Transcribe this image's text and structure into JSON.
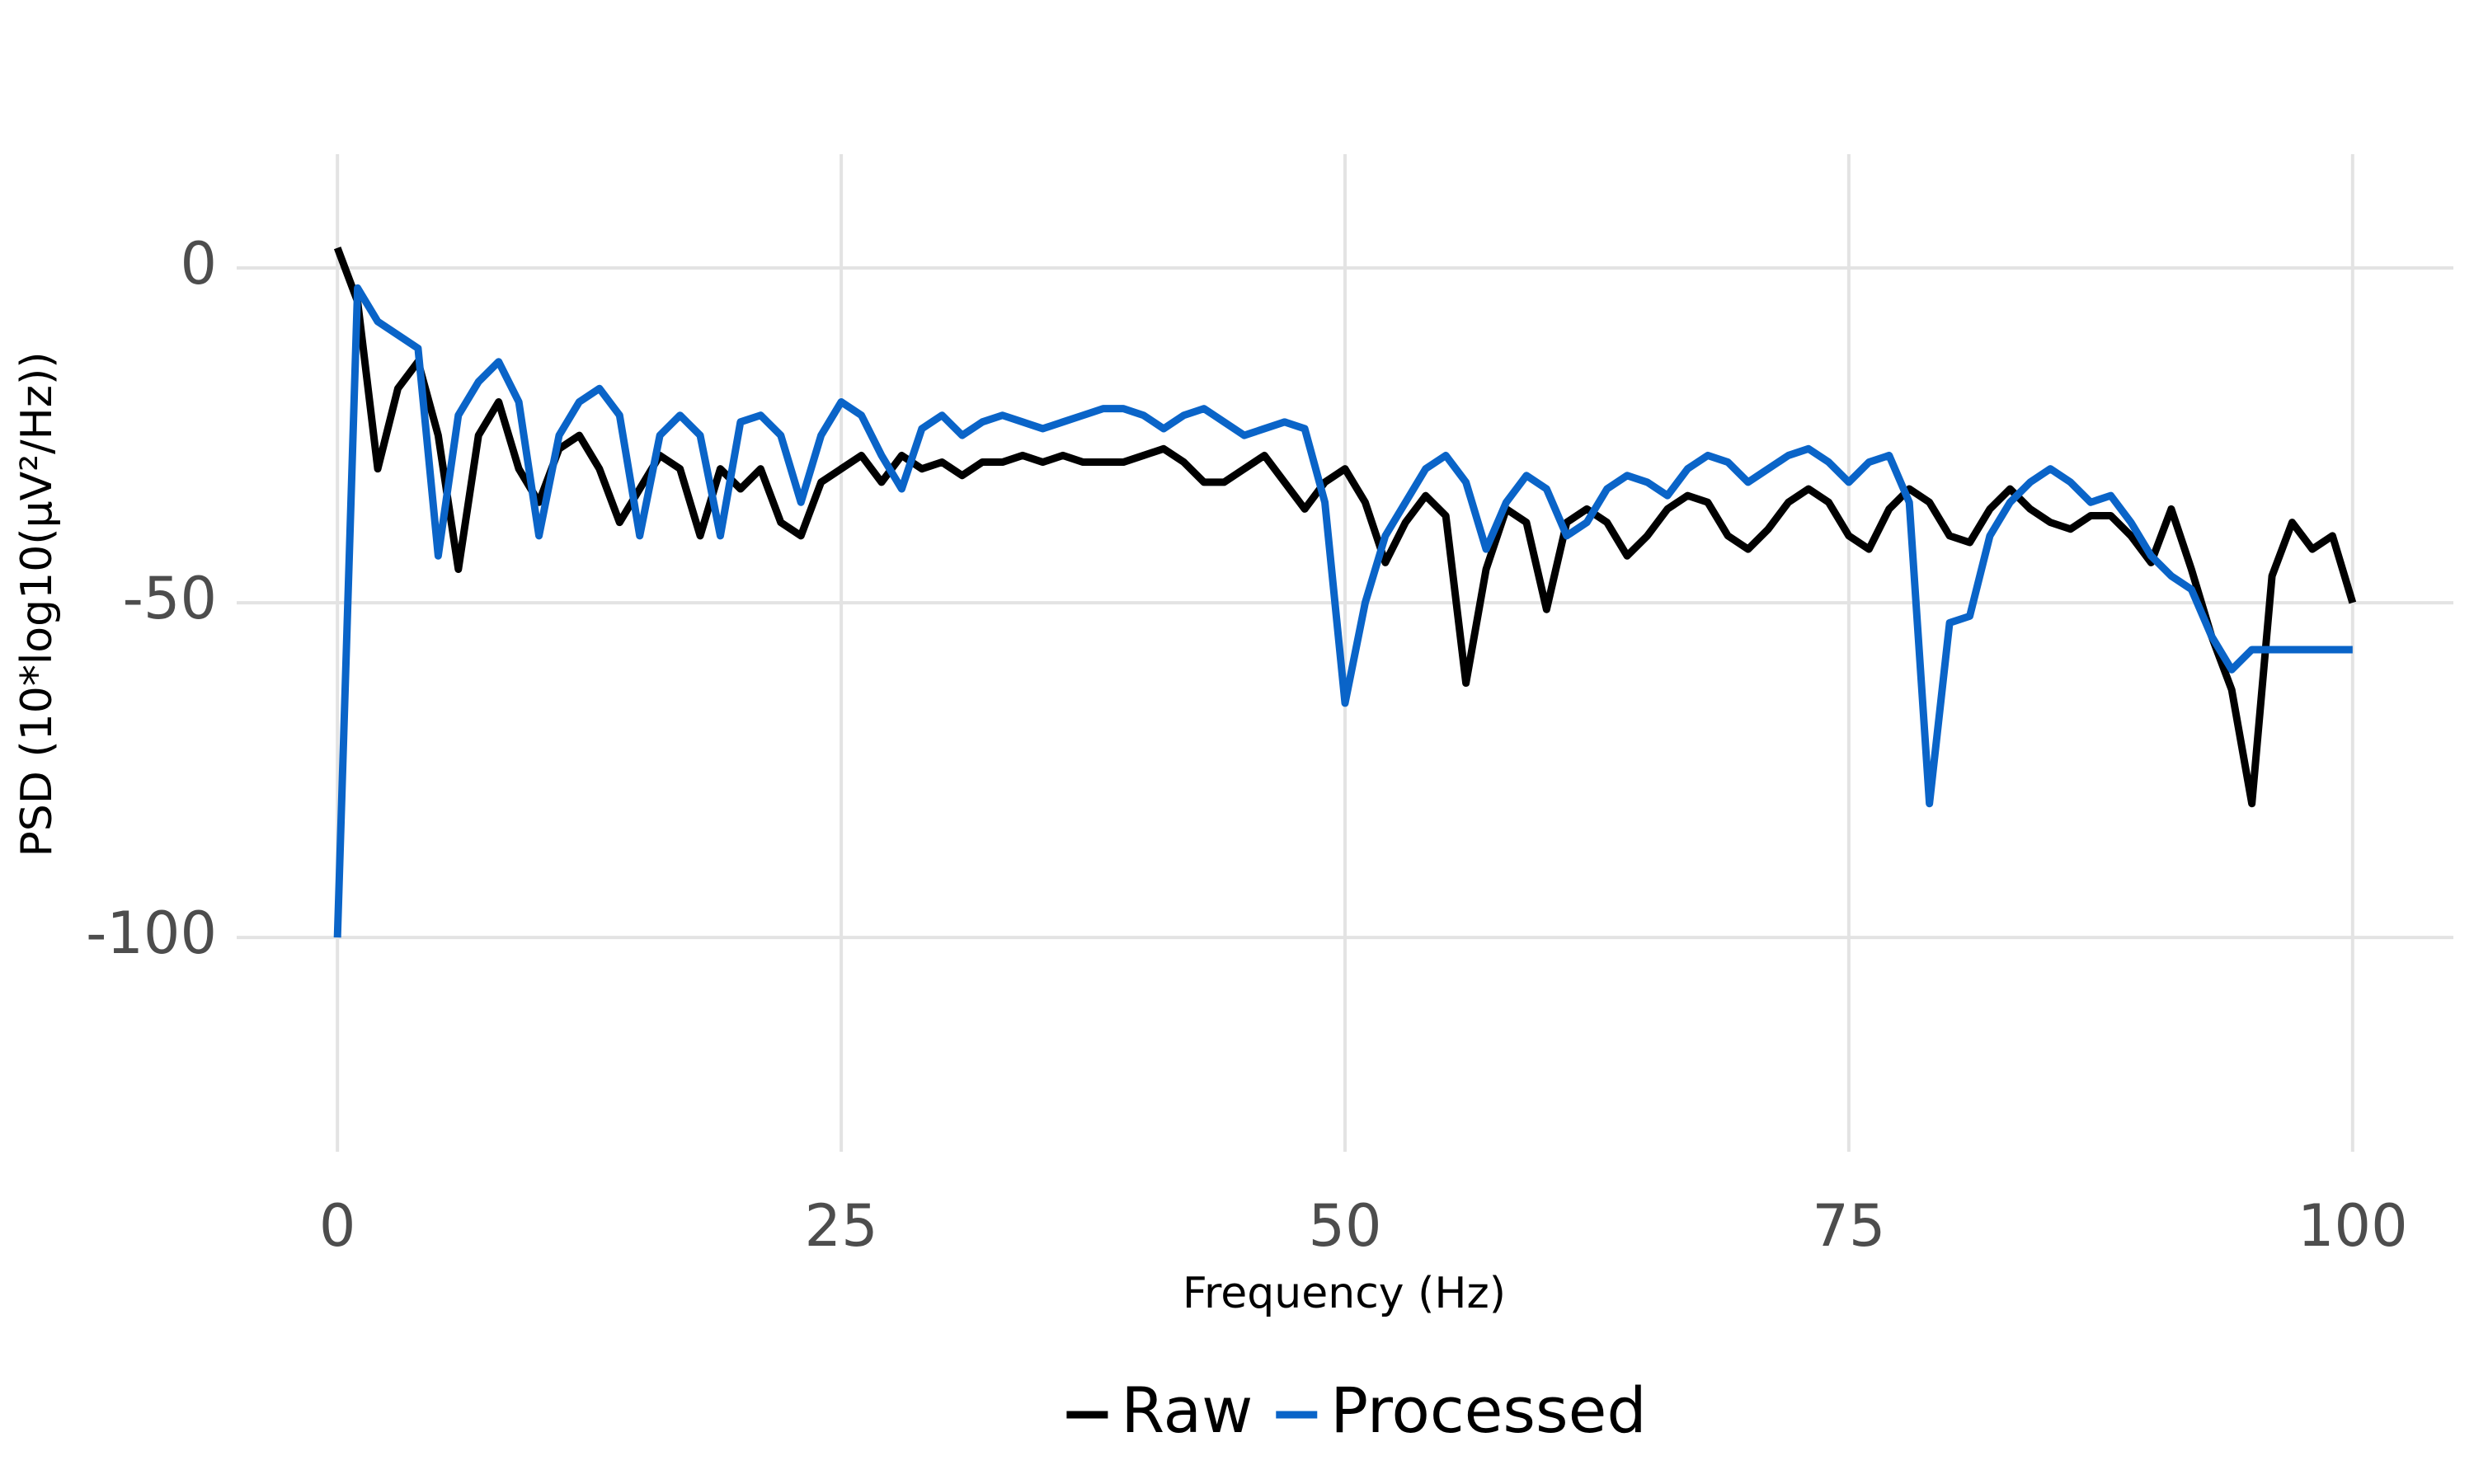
{
  "chart_data": {
    "type": "line",
    "x_label": "Frequency (Hz)",
    "y_label": "PSD (10*log10(µV²/Hz))",
    "x": [
      0,
      1,
      2,
      3,
      4,
      5,
      6,
      7,
      8,
      9,
      10,
      11,
      12,
      13,
      14,
      15,
      16,
      17,
      18,
      19,
      20,
      21,
      22,
      23,
      24,
      25,
      26,
      27,
      28,
      29,
      30,
      31,
      32,
      33,
      34,
      35,
      36,
      37,
      38,
      39,
      40,
      41,
      42,
      43,
      44,
      45,
      46,
      47,
      48,
      49,
      50,
      51,
      52,
      53,
      54,
      55,
      56,
      57,
      58,
      59,
      60,
      61,
      62,
      63,
      64,
      65,
      66,
      67,
      68,
      69,
      70,
      71,
      72,
      73,
      74,
      75,
      76,
      77,
      78,
      79,
      80,
      81,
      82,
      83,
      84,
      85,
      86,
      87,
      88,
      89,
      90,
      91,
      92,
      93,
      94,
      95,
      96,
      97,
      98,
      99,
      100
    ],
    "series": [
      {
        "name": "Raw",
        "color": "#000000",
        "values": [
          3,
          -5,
          -30,
          -18,
          -14,
          -25,
          -45,
          -25,
          -20,
          -30,
          -35,
          -27,
          -25,
          -30,
          -38,
          -33,
          -28,
          -30,
          -40,
          -30,
          -33,
          -30,
          -38,
          -40,
          -32,
          -30,
          -28,
          -32,
          -28,
          -30,
          -29,
          -31,
          -29,
          -29,
          -28,
          -29,
          -28,
          -29,
          -29,
          -29,
          -28,
          -27,
          -29,
          -32,
          -32,
          -30,
          -28,
          -32,
          -36,
          -32,
          -30,
          -35,
          -44,
          -38,
          -34,
          -37,
          -62,
          -45,
          -36,
          -38,
          -51,
          -38,
          -36,
          -38,
          -43,
          -40,
          -36,
          -34,
          -35,
          -40,
          -42,
          -39,
          -35,
          -33,
          -35,
          -40,
          -42,
          -36,
          -33,
          -35,
          -40,
          -41,
          -36,
          -33,
          -36,
          -38,
          -39,
          -37,
          -37,
          -40,
          -44,
          -36,
          -45,
          -55,
          -63,
          -80,
          -46,
          -38,
          -42,
          -40,
          -50
        ]
      },
      {
        "name": "Processed",
        "color": "#0a64c8",
        "values": [
          -100,
          -3,
          -8,
          -10,
          -12,
          -43,
          -22,
          -17,
          -14,
          -20,
          -40,
          -25,
          -20,
          -18,
          -22,
          -40,
          -25,
          -22,
          -25,
          -40,
          -23,
          -22,
          -25,
          -35,
          -25,
          -20,
          -22,
          -28,
          -33,
          -24,
          -22,
          -25,
          -23,
          -22,
          -23,
          -24,
          -23,
          -22,
          -21,
          -21,
          -22,
          -24,
          -22,
          -21,
          -23,
          -25,
          -24,
          -23,
          -24,
          -35,
          -65,
          -50,
          -40,
          -35,
          -30,
          -28,
          -32,
          -42,
          -35,
          -31,
          -33,
          -40,
          -38,
          -33,
          -31,
          -32,
          -34,
          -30,
          -28,
          -29,
          -32,
          -30,
          -28,
          -27,
          -29,
          -32,
          -29,
          -28,
          -35,
          -80,
          -53,
          -52,
          -40,
          -35,
          -32,
          -30,
          -32,
          -35,
          -34,
          -38,
          -43,
          -46,
          -48,
          -55,
          -60,
          -57,
          -57,
          -57,
          -57,
          -57,
          -57
        ]
      }
    ],
    "xlim": [
      -5,
      105
    ],
    "ylim": [
      -132,
      17
    ],
    "xticks": [
      0,
      25,
      50,
      75,
      100
    ],
    "yticks": [
      0,
      -50,
      -100
    ],
    "grid": true,
    "legend": "bottom"
  }
}
